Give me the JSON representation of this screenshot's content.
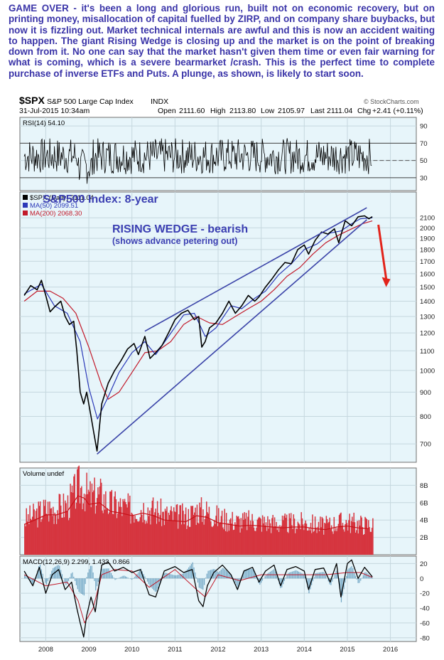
{
  "commentary": "GAME OVER - it's been a long and glorious run, built not on economic recovery, but on printing money, misallocation of capital fuelled by ZIRP, and on company share buybacks, but now it is fizzling out. Market technical internals are awful and this is now an accident waiting to happen. The giant Rising Wedge is closing up and the market is on the point of breaking down from it. No one can say that the market hasn't given them time or even fair warning for what is coming, which is a severe bearmarket /crash. This is the perfect time to complete purchase of inverse ETFs and Puts. A plunge, as shown, is likely to start soon.",
  "header": {
    "symbol": "$SPX",
    "name": "S&P 500 Large Cap Index",
    "exchange": "INDX",
    "date": "31-Jul-2015 10:34am",
    "open_label": "Open",
    "open": "2111.60",
    "high_label": "High",
    "high": "2113.80",
    "low_label": "Low",
    "low": "2105.97",
    "last_label": "Last",
    "last": "2111.04",
    "chg_label": "Chg",
    "chg": "+2.41 (+0.11%)",
    "watermark": "© StockCharts.com"
  },
  "annotations": {
    "index_title": "S&P500 Index: 8-year",
    "wedge_title": "RISING WEDGE - bearish",
    "wedge_sub": "(shows advance petering out)"
  },
  "colors": {
    "panel_bg": "#e7f5fa",
    "price": "#000000",
    "ma50": "#2b39b8",
    "ma200": "#c21a2a",
    "wedge": "#3a43a8",
    "arrow": "#e2231a",
    "volume_bar": "#d6353f",
    "volume_ma": "#c81018",
    "macd_signal": "#c21a2a",
    "macd_hist": "#1f6fa0",
    "text_blue": "#3b3fb2"
  },
  "chart_data": [
    {
      "type": "line",
      "panel": "RSI",
      "legend": [
        "RSI(14) 54.10"
      ],
      "ylim": [
        15,
        100
      ],
      "y_ticks": [
        90,
        70,
        50,
        30
      ],
      "ref_lines": [
        70,
        30
      ],
      "x_tick_labels": [
        "2008",
        "2009",
        "2010",
        "2011",
        "2012",
        "2013",
        "2014",
        "2015",
        "2016"
      ],
      "x_range": [
        2007.4,
        2016.6
      ],
      "series": [
        {
          "name": "RSI(14)",
          "last": 54.1
        }
      ]
    },
    {
      "type": "line",
      "panel": "Price",
      "title": "S&P500 Index: 8-year",
      "log_scale": true,
      "ylim": [
        640,
        2380
      ],
      "y_ticks": [
        2100,
        2000,
        1900,
        1800,
        1700,
        1600,
        1500,
        1400,
        1300,
        1200,
        1100,
        1000,
        900,
        800,
        700
      ],
      "x_tick_labels": [
        "2008",
        "2009",
        "2010",
        "2011",
        "2012",
        "2013",
        "2014",
        "2015",
        "2016"
      ],
      "x_range": [
        2007.4,
        2016.6
      ],
      "legend": [
        "$SPX (Daily) 2111.04",
        "MA(50) 2099.51",
        "MA(200) 2068.30"
      ],
      "series": [
        {
          "name": "$SPX (Daily)",
          "x": [
            2007.5,
            2007.65,
            2007.8,
            2007.9,
            2008.0,
            2008.1,
            2008.2,
            2008.35,
            2008.45,
            2008.55,
            2008.65,
            2008.72,
            2008.8,
            2008.88,
            2008.95,
            2009.05,
            2009.12,
            2009.19,
            2009.3,
            2009.45,
            2009.6,
            2009.75,
            2009.9,
            2010.05,
            2010.15,
            2010.3,
            2010.42,
            2010.55,
            2010.7,
            2010.85,
            2011.0,
            2011.15,
            2011.3,
            2011.45,
            2011.55,
            2011.62,
            2011.7,
            2011.8,
            2011.95,
            2012.1,
            2012.25,
            2012.4,
            2012.55,
            2012.7,
            2012.85,
            2012.95,
            2013.1,
            2013.25,
            2013.4,
            2013.55,
            2013.7,
            2013.85,
            2014.0,
            2014.1,
            2014.25,
            2014.4,
            2014.55,
            2014.7,
            2014.8,
            2014.95,
            2015.1,
            2015.25,
            2015.4,
            2015.5,
            2015.58
          ],
          "y": [
            1440,
            1510,
            1480,
            1550,
            1440,
            1330,
            1360,
            1400,
            1300,
            1250,
            1270,
            1100,
            900,
            850,
            900,
            800,
            735,
            676,
            850,
            940,
            1000,
            1050,
            1110,
            1140,
            1080,
            1180,
            1060,
            1090,
            1130,
            1200,
            1280,
            1320,
            1340,
            1280,
            1300,
            1120,
            1150,
            1230,
            1260,
            1320,
            1400,
            1320,
            1370,
            1440,
            1400,
            1430,
            1500,
            1560,
            1630,
            1690,
            1680,
            1800,
            1840,
            1760,
            1880,
            1960,
            1940,
            1990,
            1860,
            2070,
            2020,
            2110,
            2120,
            2090,
            2111
          ]
        },
        {
          "name": "MA(50)",
          "x": [
            2007.5,
            2007.9,
            2008.2,
            2008.5,
            2008.8,
            2009.0,
            2009.2,
            2009.45,
            2009.7,
            2010.0,
            2010.3,
            2010.55,
            2010.85,
            2011.2,
            2011.45,
            2011.7,
            2011.95,
            2012.3,
            2012.55,
            2012.85,
            2013.1,
            2013.4,
            2013.7,
            2014.0,
            2014.3,
            2014.6,
            2014.85,
            2015.1,
            2015.3,
            2015.58
          ],
          "y": [
            1450,
            1520,
            1370,
            1320,
            1150,
            920,
            790,
            880,
            990,
            1090,
            1150,
            1080,
            1180,
            1310,
            1320,
            1180,
            1230,
            1370,
            1350,
            1420,
            1470,
            1590,
            1680,
            1800,
            1850,
            1950,
            1970,
            2040,
            2090,
            2099.51
          ]
        },
        {
          "name": "MA(200)",
          "x": [
            2007.5,
            2007.8,
            2008.1,
            2008.4,
            2008.7,
            2009.0,
            2009.3,
            2009.45,
            2009.7,
            2010.0,
            2010.3,
            2010.6,
            2010.9,
            2011.2,
            2011.5,
            2011.8,
            2012.1,
            2012.4,
            2012.7,
            2013.0,
            2013.3,
            2013.6,
            2013.9,
            2014.2,
            2014.5,
            2014.8,
            2015.1,
            2015.35,
            2015.58
          ],
          "y": [
            1400,
            1470,
            1470,
            1420,
            1320,
            1120,
            930,
            870,
            900,
            990,
            1090,
            1100,
            1150,
            1250,
            1300,
            1260,
            1250,
            1300,
            1350,
            1400,
            1480,
            1580,
            1650,
            1760,
            1860,
            1930,
            1990,
            2040,
            2068.3
          ]
        }
      ],
      "trendlines": [
        {
          "name": "wedge-upper",
          "x": [
            2010.3,
            2015.45
          ],
          "y": [
            1210,
            2205
          ]
        },
        {
          "name": "wedge-lower",
          "x": [
            2009.19,
            2015.45
          ],
          "y": [
            666,
            2080
          ]
        }
      ],
      "arrow": {
        "x": [
          2015.72,
          2015.9
        ],
        "y": [
          2030,
          1500
        ]
      }
    },
    {
      "type": "bar",
      "panel": "Volume",
      "legend": [
        "Volume undef"
      ],
      "ylim": [
        0,
        10
      ],
      "y_ticks": [
        8,
        6,
        4,
        2
      ],
      "y_tick_labels": [
        "8B",
        "6B",
        "4B",
        "2B"
      ],
      "x_range": [
        2007.4,
        2016.6
      ],
      "x_tick_labels": [
        "2008",
        "2009",
        "2010",
        "2011",
        "2012",
        "2013",
        "2014",
        "2015",
        "2016"
      ],
      "series": [
        {
          "name": "Volume (B)",
          "x": [
            2007.5,
            2007.75,
            2008.0,
            2008.25,
            2008.5,
            2008.75,
            2008.9,
            2009.0,
            2009.25,
            2009.5,
            2009.75,
            2010.0,
            2010.25,
            2010.5,
            2010.75,
            2011.0,
            2011.25,
            2011.5,
            2011.75,
            2012.0,
            2012.25,
            2012.5,
            2012.75,
            2013.0,
            2013.25,
            2013.5,
            2013.75,
            2014.0,
            2014.25,
            2014.5,
            2014.75,
            2015.0,
            2015.25,
            2015.5
          ],
          "y": [
            3.5,
            4.0,
            4.6,
            4.6,
            5.0,
            6.8,
            6.5,
            5.8,
            6.0,
            5.0,
            4.8,
            4.5,
            4.8,
            4.5,
            4.0,
            3.9,
            3.8,
            4.5,
            4.3,
            3.7,
            3.5,
            3.3,
            3.4,
            3.3,
            3.2,
            3.1,
            3.2,
            3.2,
            3.0,
            2.9,
            3.2,
            3.3,
            3.1,
            3.0
          ]
        }
      ]
    },
    {
      "type": "line",
      "panel": "MACD",
      "legend": [
        "MACD(12,26,9) 2.299, 1.433, 0.866"
      ],
      "ylim": [
        -85,
        30
      ],
      "y_ticks": [
        20,
        0,
        -20,
        -40,
        -60,
        -80
      ],
      "x_tick_labels": [
        "2008",
        "2009",
        "2010",
        "2011",
        "2012",
        "2013",
        "2014",
        "2015",
        "2016"
      ],
      "x_range": [
        2007.4,
        2016.6
      ],
      "series": [
        {
          "name": "MACD",
          "x": [
            2007.5,
            2007.7,
            2007.85,
            2008.0,
            2008.15,
            2008.3,
            2008.45,
            2008.6,
            2008.72,
            2008.8,
            2008.88,
            2008.95,
            2009.05,
            2009.15,
            2009.3,
            2009.45,
            2009.6,
            2009.8,
            2010.0,
            2010.2,
            2010.4,
            2010.55,
            2010.75,
            2011.0,
            2011.2,
            2011.4,
            2011.55,
            2011.65,
            2011.75,
            2011.9,
            2012.1,
            2012.3,
            2012.45,
            2012.6,
            2012.8,
            2012.95,
            2013.1,
            2013.3,
            2013.45,
            2013.6,
            2013.8,
            2014.0,
            2014.1,
            2014.25,
            2014.45,
            2014.6,
            2014.75,
            2014.85,
            2015.0,
            2015.1,
            2015.25,
            2015.4,
            2015.58
          ],
          "y": [
            10,
            -10,
            15,
            -20,
            5,
            12,
            -15,
            -5,
            -40,
            -60,
            -79,
            -50,
            -25,
            -45,
            18,
            22,
            10,
            15,
            8,
            12,
            -22,
            -25,
            10,
            16,
            8,
            12,
            -30,
            -38,
            -10,
            8,
            18,
            5,
            -15,
            10,
            15,
            -5,
            10,
            18,
            -10,
            12,
            16,
            10,
            -15,
            12,
            14,
            -5,
            20,
            -25,
            20,
            25,
            0,
            15,
            2.299
          ]
        },
        {
          "name": "Signal",
          "x": [
            2007.5,
            2008.0,
            2008.5,
            2008.75,
            2008.9,
            2009.1,
            2009.3,
            2009.6,
            2010.0,
            2010.4,
            2010.7,
            2011.0,
            2011.5,
            2011.7,
            2012.0,
            2012.5,
            2013.0,
            2013.5,
            2014.0,
            2014.5,
            2015.0,
            2015.3,
            2015.58
          ],
          "y": [
            5,
            -10,
            -5,
            -30,
            -60,
            -40,
            5,
            12,
            10,
            -12,
            0,
            12,
            -15,
            -25,
            5,
            -3,
            5,
            5,
            5,
            5,
            8,
            8,
            1.433
          ]
        },
        {
          "name": "Histogram",
          "last": 0.866
        }
      ]
    }
  ]
}
